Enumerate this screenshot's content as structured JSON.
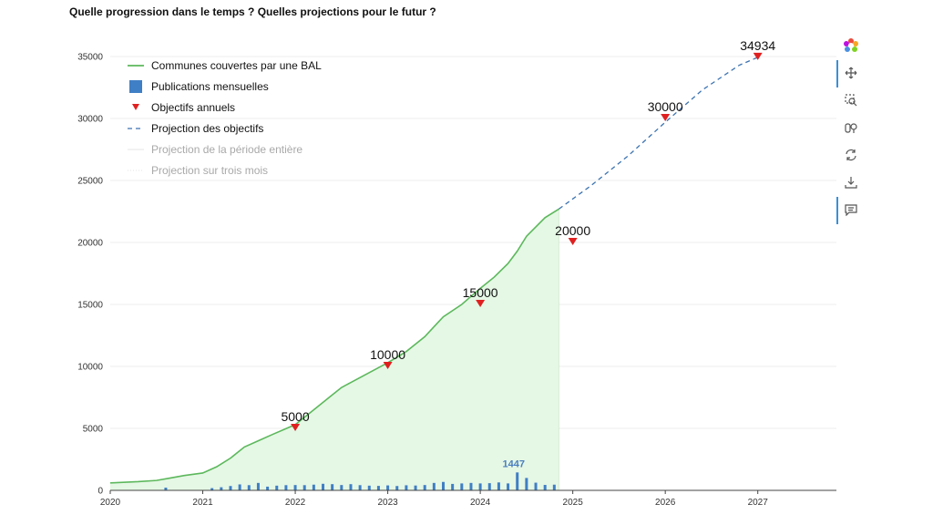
{
  "title": "Quelle progression dans le temps ? Quelles projections pour le futur ?",
  "toolbar": {
    "icons": [
      "logo-icon",
      "pan-icon",
      "zoom-icon",
      "compare-icon",
      "reset-icon",
      "download-icon",
      "comment-icon"
    ]
  },
  "colors": {
    "line": "#5cb85c",
    "area": "#e5f7e5",
    "bar": "#3f7fc5",
    "objective": "#e02020",
    "projection": "#3a72b0"
  },
  "chart_data": {
    "type": "line",
    "xlim": [
      2020,
      2027.85
    ],
    "ylim": [
      0,
      35000
    ],
    "x_ticks": [
      "2020",
      "2021",
      "2022",
      "2023",
      "2024",
      "2025",
      "2026",
      "2027"
    ],
    "y_ticks": [
      "0",
      "5000",
      "10000",
      "15000",
      "20000",
      "25000",
      "30000",
      "35000"
    ],
    "legend": {
      "placement": "top-left",
      "items": [
        "Communes couvertes par une BAL",
        "Publications mensuelles",
        "Objectifs annuels",
        "Projection des objectifs",
        "Projection de la période entière",
        "Projection sur trois mois"
      ]
    },
    "series": [
      {
        "name": "Communes couvertes par une BAL",
        "type": "area-line",
        "x": [
          2020.0,
          2020.3,
          2020.5,
          2020.65,
          2020.8,
          2021.0,
          2021.15,
          2021.3,
          2021.45,
          2021.6,
          2021.75,
          2022.0,
          2022.2,
          2022.4,
          2022.5,
          2022.6,
          2022.8,
          2023.0,
          2023.2,
          2023.4,
          2023.5,
          2023.6,
          2023.8,
          2024.0,
          2024.15,
          2024.3,
          2024.4,
          2024.5,
          2024.7,
          2024.85
        ],
        "y": [
          600,
          700,
          800,
          1000,
          1200,
          1400,
          1900,
          2600,
          3500,
          4000,
          4500,
          5300,
          6500,
          7700,
          8300,
          8700,
          9500,
          10300,
          11200,
          12400,
          13200,
          14000,
          15000,
          16300,
          17200,
          18300,
          19300,
          20500,
          22000,
          22700
        ]
      },
      {
        "name": "Publications mensuelles",
        "type": "bar",
        "x": [
          2020.6,
          2021.1,
          2021.2,
          2021.3,
          2021.4,
          2021.5,
          2021.6,
          2021.7,
          2021.8,
          2021.9,
          2022.0,
          2022.1,
          2022.2,
          2022.3,
          2022.4,
          2022.5,
          2022.6,
          2022.7,
          2022.8,
          2022.9,
          2023.0,
          2023.1,
          2023.2,
          2023.3,
          2023.4,
          2023.5,
          2023.6,
          2023.7,
          2023.8,
          2023.9,
          2024.0,
          2024.1,
          2024.2,
          2024.3,
          2024.4,
          2024.5,
          2024.6,
          2024.7,
          2024.8
        ],
        "values": [
          220,
          180,
          250,
          350,
          480,
          420,
          600,
          300,
          380,
          420,
          430,
          420,
          460,
          530,
          500,
          430,
          500,
          420,
          380,
          360,
          400,
          350,
          410,
          390,
          430,
          600,
          680,
          520,
          560,
          600,
          560,
          580,
          640,
          560,
          1447,
          1000,
          620,
          440,
          460
        ]
      },
      {
        "name": "Objectifs annuels",
        "type": "scatter",
        "x": [
          2022,
          2023,
          2024,
          2025,
          2026,
          2027
        ],
        "y": [
          5000,
          10000,
          15000,
          20000,
          30000,
          34934
        ],
        "labels": [
          "5000",
          "10000",
          "15000",
          "20000",
          "30000",
          "34934"
        ]
      },
      {
        "name": "Projection des objectifs",
        "type": "dashed-line",
        "x": [
          2024.85,
          2025.2,
          2025.6,
          2026.0,
          2026.4,
          2026.8,
          2027.0
        ],
        "y": [
          22700,
          24600,
          27000,
          29700,
          32300,
          34300,
          34934
        ]
      }
    ],
    "bar_annotation": {
      "x": 2024.4,
      "value": 1447,
      "label": "1447"
    }
  }
}
